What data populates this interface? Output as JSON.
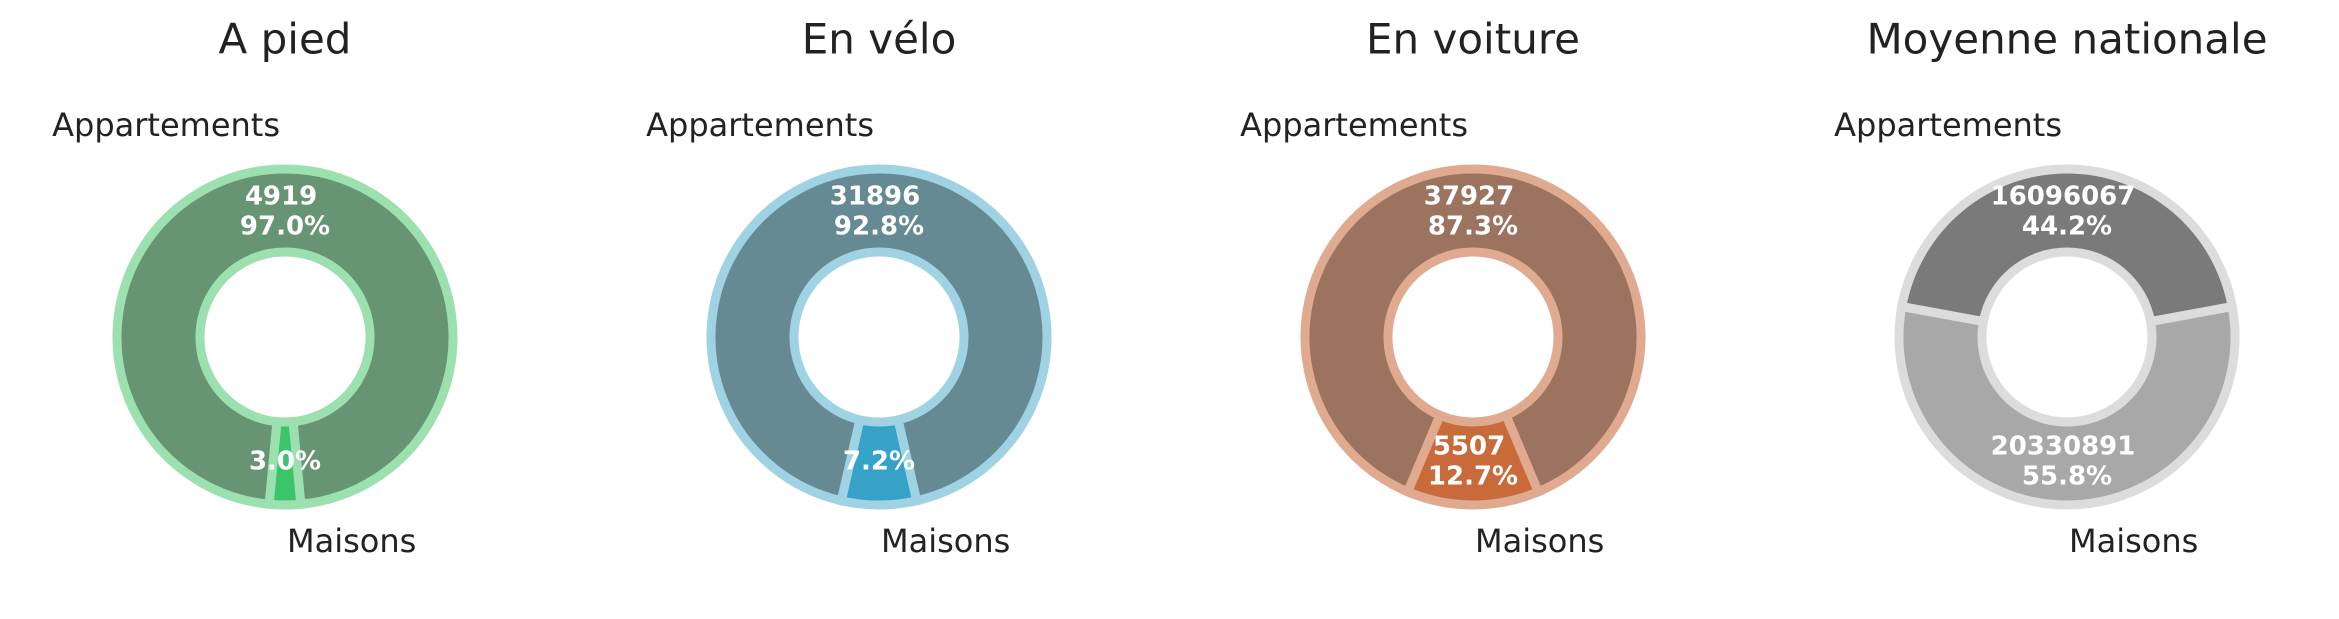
{
  "chart_data": [
    {
      "type": "donut",
      "title": "A pied",
      "categories": [
        "Appartements",
        "Maisons"
      ],
      "values": [
        97.0,
        3.0
      ],
      "value_labels": [
        "97.0%",
        "3.0%"
      ],
      "counts": [
        4919,
        null
      ],
      "colors": [
        "#679473",
        "#3cc46a"
      ],
      "edge_color": "#9de0b0"
    },
    {
      "type": "donut",
      "title": "En vélo",
      "categories": [
        "Appartements",
        "Maisons"
      ],
      "values": [
        92.8,
        7.2
      ],
      "value_labels": [
        "92.8%",
        "7.2%"
      ],
      "counts": [
        31896,
        null
      ],
      "colors": [
        "#668a93",
        "#36a2c8"
      ],
      "edge_color": "#9fd2e2"
    },
    {
      "type": "donut",
      "title": "En voiture",
      "categories": [
        "Appartements",
        "Maisons"
      ],
      "values": [
        87.3,
        12.7
      ],
      "value_labels": [
        "87.3%",
        "12.7%"
      ],
      "counts": [
        37927,
        5507
      ],
      "colors": [
        "#9c735e",
        "#c86a3a"
      ],
      "edge_color": "#e0aa90"
    },
    {
      "type": "donut",
      "title": "Moyenne nationale",
      "categories": [
        "Appartements",
        "Maisons"
      ],
      "values": [
        44.2,
        55.8
      ],
      "value_labels": [
        "44.2%",
        "55.8%"
      ],
      "counts": [
        16096067,
        20330891
      ],
      "colors": [
        "#7a7a7a",
        "#a8a8a8"
      ],
      "edge_color": "#dcdcdc"
    }
  ]
}
